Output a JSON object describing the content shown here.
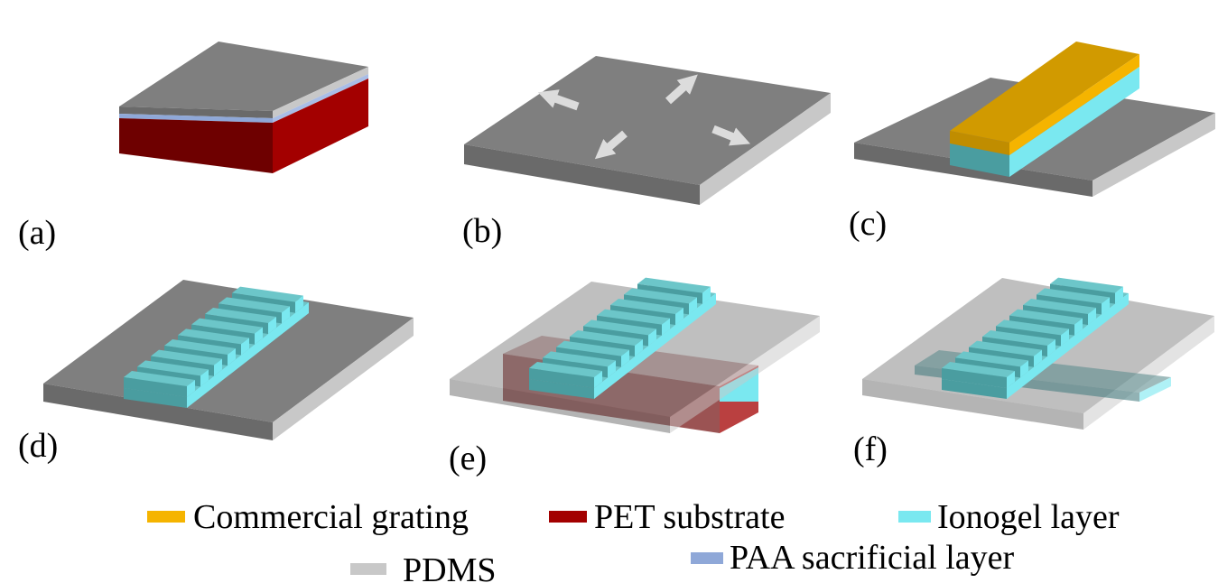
{
  "panels": [
    {
      "label": "(a)"
    },
    {
      "label": "(b)"
    },
    {
      "label": "(c)"
    },
    {
      "label": "(d)"
    },
    {
      "label": "(e)"
    },
    {
      "label": "(f)"
    }
  ],
  "legend": [
    {
      "label": "Commercial grating"
    },
    {
      "label": "PET substrate"
    },
    {
      "label": "Ionogel layer"
    },
    {
      "label": "PDMS"
    },
    {
      "label": "PAA sacrificial layer"
    }
  ]
}
